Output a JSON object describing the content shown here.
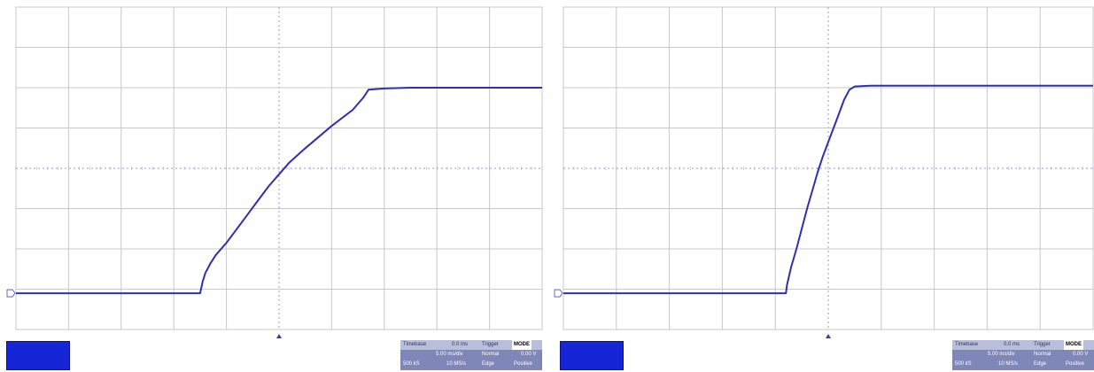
{
  "colors": {
    "trace": "#2f2fb2",
    "grid": "#c8c8c8",
    "background": "#ffffff",
    "channel_box": "#1626d6",
    "info_box": "#7f86b8"
  },
  "chart_data": [
    {
      "type": "line",
      "x": [
        0,
        0.5,
        1,
        1.5,
        2,
        2.5,
        3,
        3.5,
        3.55,
        3.6,
        3.7,
        3.8,
        4.0,
        4.2,
        4.4,
        4.6,
        4.8,
        5.0,
        5.2,
        5.5,
        6.0,
        6.4,
        6.6,
        6.7,
        7,
        7.5,
        8,
        8.5,
        9,
        9.5,
        10
      ],
      "y": [
        -3.1,
        -3.1,
        -3.1,
        -3.1,
        -3.1,
        -3.1,
        -3.1,
        -3.1,
        -2.8,
        -2.6,
        -2.35,
        -2.15,
        -1.85,
        -1.5,
        -1.15,
        -0.8,
        -0.45,
        -0.15,
        0.15,
        0.5,
        1.05,
        1.45,
        1.75,
        1.95,
        1.98,
        2.0,
        2.0,
        2.0,
        2.0,
        2.0,
        2.0
      ],
      "xlim": [
        0,
        10
      ],
      "ylim": [
        -4,
        4
      ],
      "grid": true,
      "channel": {
        "name": "",
        "value": ""
      },
      "info": {
        "timebase_label": "Timebase",
        "timebase_value": "0.0 ms",
        "trigger_label": "Trigger",
        "trigger_mode": "MODE",
        "row2": [
          "",
          "5.00 ms/div",
          "Normal",
          "0.00 V"
        ],
        "row3": [
          "500 kS",
          "10 MS/s",
          "Edge",
          "Positive"
        ]
      }
    },
    {
      "type": "line",
      "x": [
        0,
        0.5,
        1,
        1.5,
        2,
        2.5,
        3,
        3.5,
        4,
        4.2,
        4.22,
        4.3,
        4.4,
        4.5,
        4.6,
        4.7,
        4.8,
        4.9,
        5.0,
        5.1,
        5.2,
        5.3,
        5.4,
        5.5,
        5.8,
        6,
        6.5,
        7,
        8,
        9,
        10
      ],
      "y": [
        -3.1,
        -3.1,
        -3.1,
        -3.1,
        -3.1,
        -3.1,
        -3.1,
        -3.1,
        -3.1,
        -3.1,
        -2.9,
        -2.45,
        -2.0,
        -1.5,
        -1.0,
        -0.55,
        -0.1,
        0.3,
        0.65,
        1.0,
        1.35,
        1.7,
        1.95,
        2.03,
        2.05,
        2.05,
        2.05,
        2.05,
        2.05,
        2.05,
        2.05
      ],
      "xlim": [
        0,
        10
      ],
      "ylim": [
        -4,
        4
      ],
      "grid": true,
      "channel": {
        "name": "",
        "value": ""
      },
      "info": {
        "timebase_label": "Timebase",
        "timebase_value": "0.0 ms",
        "trigger_label": "Trigger",
        "trigger_mode": "MODE",
        "row2": [
          "",
          "5.00 ms/div",
          "Normal",
          "0.00 V"
        ],
        "row3": [
          "500 kS",
          "10 MS/s",
          "Edge",
          "Positive"
        ]
      }
    }
  ]
}
